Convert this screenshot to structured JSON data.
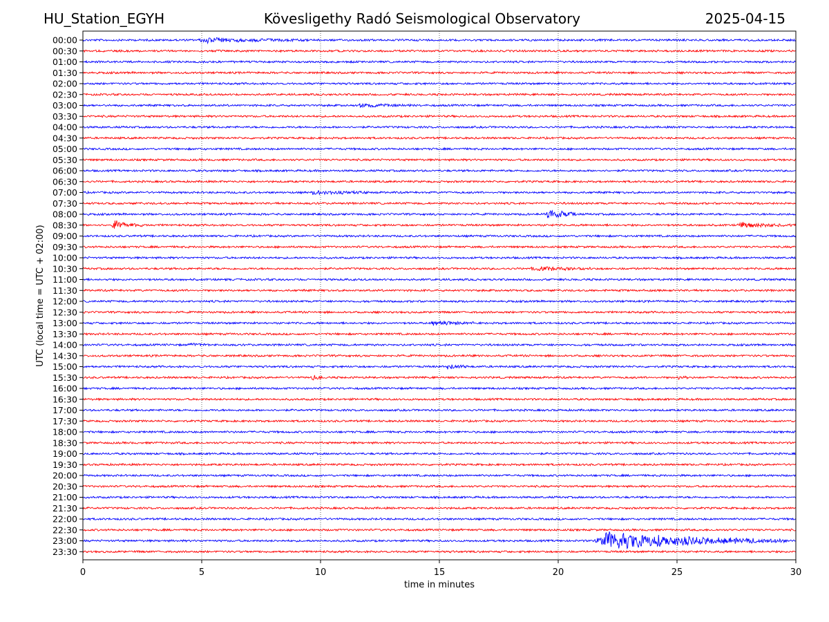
{
  "header": {
    "station": "HU_Station_EGYH",
    "observatory": "Kövesligethy Radó Seismological Observatory",
    "date": "2025-04-15"
  },
  "chart_data": {
    "type": "line",
    "title": "Kövesligethy Radó Seismological Observatory",
    "xlabel": "time in minutes",
    "ylabel": "UTC (local time = UTC + 02:00)",
    "xlim": [
      0,
      30
    ],
    "x_ticks": [
      "0",
      "5",
      "10",
      "15",
      "20",
      "25",
      "30"
    ],
    "grid": "vertical dotted lines at 5, 10, 15, 20, 25",
    "row_labels": [
      "00:00",
      "00:30",
      "01:00",
      "01:30",
      "02:00",
      "02:30",
      "03:00",
      "03:30",
      "04:00",
      "04:30",
      "05:00",
      "05:30",
      "06:00",
      "06:30",
      "07:00",
      "07:30",
      "08:00",
      "08:30",
      "09:00",
      "09:30",
      "10:00",
      "10:30",
      "11:00",
      "11:30",
      "12:00",
      "12:30",
      "13:00",
      "13:30",
      "14:00",
      "14:30",
      "15:00",
      "15:30",
      "16:00",
      "16:30",
      "17:00",
      "17:30",
      "18:00",
      "18:30",
      "19:00",
      "19:30",
      "20:00",
      "20:30",
      "21:00",
      "21:30",
      "22:00",
      "22:30",
      "23:00",
      "23:30"
    ],
    "colors": [
      "#0000ff",
      "#ff0000"
    ],
    "events": [
      {
        "row": "00:00",
        "start_min": 4.8,
        "end_min": 9.3,
        "amplitude": 0.55
      },
      {
        "row": "03:00",
        "start_min": 11.5,
        "end_min": 14.0,
        "amplitude": 0.4
      },
      {
        "row": "07:00",
        "start_min": 9.5,
        "end_min": 12.0,
        "amplitude": 0.45
      },
      {
        "row": "08:00",
        "start_min": 19.5,
        "end_min": 20.8,
        "amplitude": 1.4
      },
      {
        "row": "08:30",
        "start_min": 1.2,
        "end_min": 2.5,
        "amplitude": 1.1
      },
      {
        "row": "08:30",
        "start_min": 27.5,
        "end_min": 29.8,
        "amplitude": 0.6
      },
      {
        "row": "10:30",
        "start_min": 18.8,
        "end_min": 21.5,
        "amplitude": 0.45
      },
      {
        "row": "13:00",
        "start_min": 14.5,
        "end_min": 16.5,
        "amplitude": 0.55
      },
      {
        "row": "14:00",
        "start_min": 4.5,
        "end_min": 5.3,
        "amplitude": 0.5
      },
      {
        "row": "15:00",
        "start_min": 15.3,
        "end_min": 16.2,
        "amplitude": 0.8
      },
      {
        "row": "15:30",
        "start_min": 9.6,
        "end_min": 10.1,
        "amplitude": 0.6
      },
      {
        "row": "15:30",
        "start_min": 25.0,
        "end_min": 25.5,
        "amplitude": 0.55
      },
      {
        "row": "23:00",
        "start_min": 21.5,
        "end_min": 29.5,
        "amplitude": 2.2
      }
    ]
  }
}
